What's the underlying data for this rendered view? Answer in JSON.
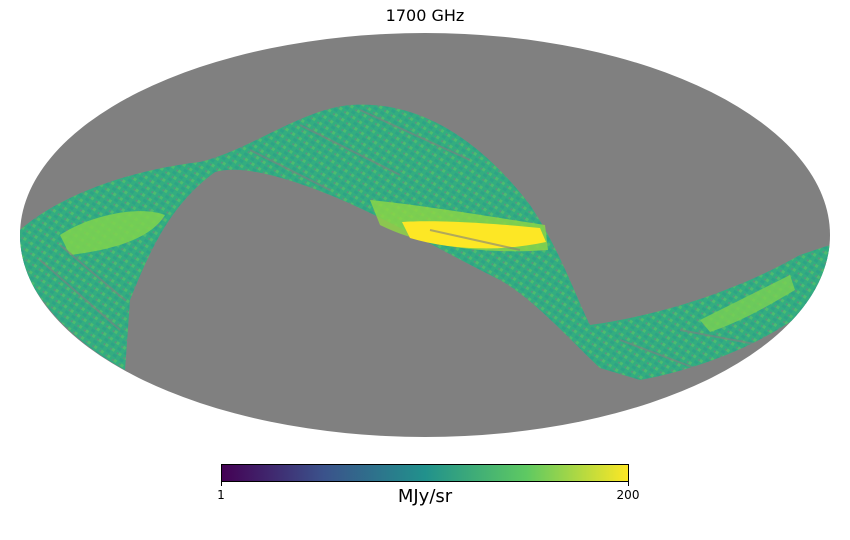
{
  "map": {
    "title": "1700 GHz",
    "projection": "mollweide",
    "masked_color": "#808080",
    "colormap": "viridis"
  },
  "colorbar": {
    "min_label": "1",
    "max_label": "200",
    "unit": "MJy/sr",
    "scale": "log",
    "colors": [
      "#440154",
      "#3b528b",
      "#21918c",
      "#5ec962",
      "#fde725"
    ]
  }
}
